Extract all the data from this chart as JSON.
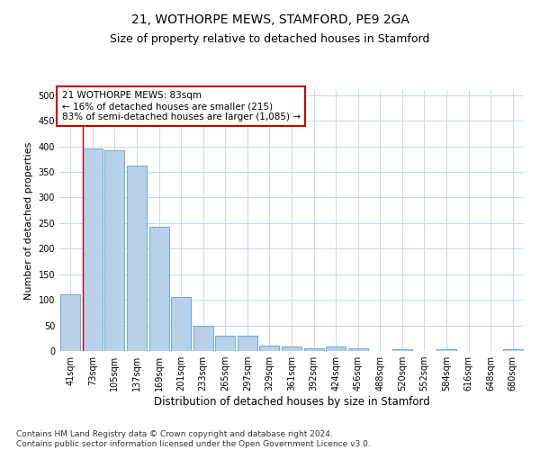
{
  "title": "21, WOTHORPE MEWS, STAMFORD, PE9 2GA",
  "subtitle": "Size of property relative to detached houses in Stamford",
  "xlabel": "Distribution of detached houses by size in Stamford",
  "ylabel": "Number of detached properties",
  "bar_color": "#b8d0e8",
  "bar_edge_color": "#5a9fd4",
  "vline_color": "#cc0000",
  "vline_x_index": 1,
  "annotation_text": "21 WOTHORPE MEWS: 83sqm\n← 16% of detached houses are smaller (215)\n83% of semi-detached houses are larger (1,085) →",
  "annotation_box_color": "#ffffff",
  "annotation_box_edge_color": "#cc0000",
  "categories": [
    "41sqm",
    "73sqm",
    "105sqm",
    "137sqm",
    "169sqm",
    "201sqm",
    "233sqm",
    "265sqm",
    "297sqm",
    "329sqm",
    "361sqm",
    "392sqm",
    "424sqm",
    "456sqm",
    "488sqm",
    "520sqm",
    "552sqm",
    "584sqm",
    "616sqm",
    "648sqm",
    "680sqm"
  ],
  "values": [
    110,
    395,
    393,
    362,
    243,
    105,
    50,
    30,
    30,
    10,
    8,
    5,
    8,
    5,
    0,
    3,
    0,
    4,
    0,
    0,
    4
  ],
  "ylim": [
    0,
    510
  ],
  "yticks": [
    0,
    50,
    100,
    150,
    200,
    250,
    300,
    350,
    400,
    450,
    500
  ],
  "background_color": "#ffffff",
  "grid_color": "#c8d8ec",
  "footer_text": "Contains HM Land Registry data © Crown copyright and database right 2024.\nContains public sector information licensed under the Open Government Licence v3.0.",
  "title_fontsize": 10,
  "subtitle_fontsize": 9,
  "xlabel_fontsize": 8.5,
  "ylabel_fontsize": 8,
  "tick_fontsize": 7,
  "annotation_fontsize": 7.5,
  "footer_fontsize": 6.5
}
